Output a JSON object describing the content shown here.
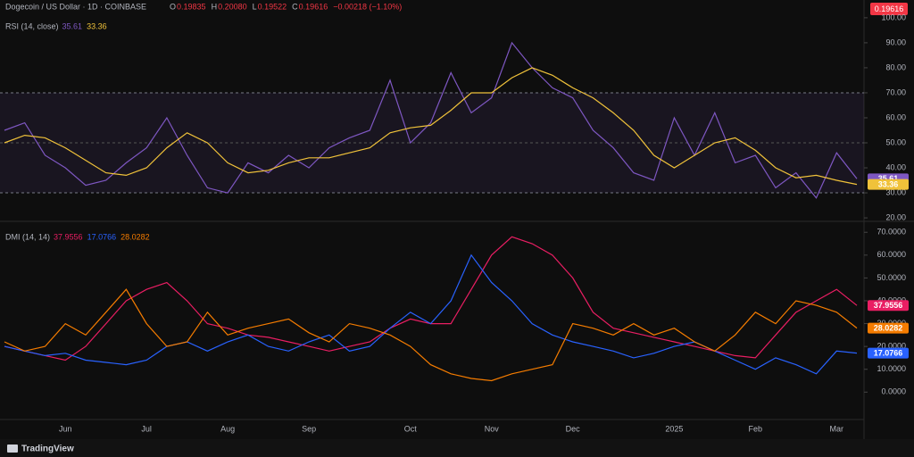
{
  "header": {
    "symbol": "Dogecoin / US Dollar · 1D · COINBASE",
    "ohlc": [
      {
        "k": "O",
        "v": "0.19835"
      },
      {
        "k": "H",
        "v": "0.20080"
      },
      {
        "k": "L",
        "v": "0.19522"
      },
      {
        "k": "C",
        "v": "0.19616"
      }
    ],
    "change": "−0.00218 (−1.10%)",
    "price": "0.19616"
  },
  "footer": {
    "brand": "TradingView"
  },
  "chart_data": [
    {
      "type": "line",
      "title": "RSI (14, close)",
      "ylim": [
        18.6,
        102.1
      ],
      "yticks": [
        {
          "value": 20,
          "label": "20.00"
        },
        {
          "value": 30,
          "label": "30.00"
        },
        {
          "value": 40,
          "label": "40.00"
        },
        {
          "value": 50,
          "label": "50.00"
        },
        {
          "value": 60,
          "label": "60.00"
        },
        {
          "value": 70,
          "label": "70.00"
        },
        {
          "value": 80,
          "label": "80.00"
        },
        {
          "value": 90,
          "label": "90.00"
        },
        {
          "value": 100,
          "label": "100.00"
        }
      ],
      "band": [
        30,
        70
      ],
      "midline": 50,
      "series": [
        {
          "color": "#7e57c2",
          "values": [
            55,
            58,
            45,
            40,
            33,
            35,
            42,
            48,
            60,
            45,
            32,
            30,
            42,
            38,
            45,
            40,
            48,
            52,
            55,
            75,
            50,
            58,
            78,
            62,
            68,
            90,
            80,
            72,
            68,
            55,
            48,
            38,
            35,
            60,
            45,
            62,
            42,
            45,
            32,
            38,
            28,
            46,
            35.61
          ]
        },
        {
          "color": "#f0c23a",
          "values": [
            50,
            53,
            52,
            48,
            43,
            38,
            37,
            40,
            48,
            54,
            50,
            42,
            38,
            39,
            42,
            44,
            44,
            46,
            48,
            54,
            56,
            57,
            63,
            70,
            70,
            76,
            80,
            77,
            72,
            68,
            62,
            55,
            45,
            40,
            45,
            50,
            52,
            47,
            40,
            36,
            37,
            35,
            33.36
          ]
        }
      ]
    },
    {
      "type": "line",
      "title": "DMI (14, 14)",
      "categories": [
        null,
        null,
        null,
        "Jun",
        null,
        null,
        null,
        "Jul",
        null,
        null,
        null,
        "Aug",
        null,
        null,
        null,
        "Sep",
        null,
        null,
        null,
        null,
        "Oct",
        null,
        null,
        null,
        "Nov",
        null,
        null,
        null,
        "Dec",
        null,
        null,
        null,
        null,
        "2025",
        null,
        null,
        null,
        "Feb",
        null,
        null,
        null,
        "Mar",
        null
      ],
      "ylim": [
        -12,
        74
      ],
      "yticks": [
        {
          "value": 0,
          "label": "0.0000"
        },
        {
          "value": 10,
          "label": "10.0000"
        },
        {
          "value": 20,
          "label": "20.0000"
        },
        {
          "value": 30,
          "label": "30.0000"
        },
        {
          "value": 40,
          "label": "40.0000"
        },
        {
          "value": 50,
          "label": "50.0000"
        },
        {
          "value": 60,
          "label": "60.0000"
        },
        {
          "value": 70,
          "label": "70.0000"
        }
      ],
      "series": [
        {
          "color": "#e91e63",
          "values": [
            20,
            18,
            16,
            14,
            20,
            30,
            40,
            45,
            48,
            40,
            30,
            28,
            25,
            24,
            22,
            20,
            18,
            20,
            22,
            28,
            32,
            30,
            30,
            45,
            60,
            68,
            65,
            60,
            50,
            35,
            28,
            26,
            24,
            22,
            20,
            18,
            16,
            15,
            25,
            35,
            40,
            45,
            37.9556
          ]
        },
        {
          "color": "#2962ff",
          "values": [
            20,
            18,
            16,
            17,
            14,
            13,
            12,
            14,
            20,
            22,
            18,
            22,
            25,
            20,
            18,
            22,
            25,
            18,
            20,
            28,
            35,
            30,
            40,
            60,
            48,
            40,
            30,
            25,
            22,
            20,
            18,
            15,
            17,
            20,
            22,
            18,
            14,
            10,
            15,
            12,
            8,
            18,
            17.0766
          ]
        },
        {
          "color": "#f57c00",
          "values": [
            22,
            18,
            20,
            30,
            25,
            35,
            45,
            30,
            20,
            22,
            35,
            25,
            28,
            30,
            32,
            26,
            22,
            30,
            28,
            25,
            20,
            12,
            8,
            6,
            5,
            8,
            10,
            12,
            30,
            28,
            25,
            30,
            25,
            28,
            22,
            18,
            25,
            35,
            30,
            40,
            38,
            35,
            28.0282
          ]
        }
      ]
    }
  ]
}
